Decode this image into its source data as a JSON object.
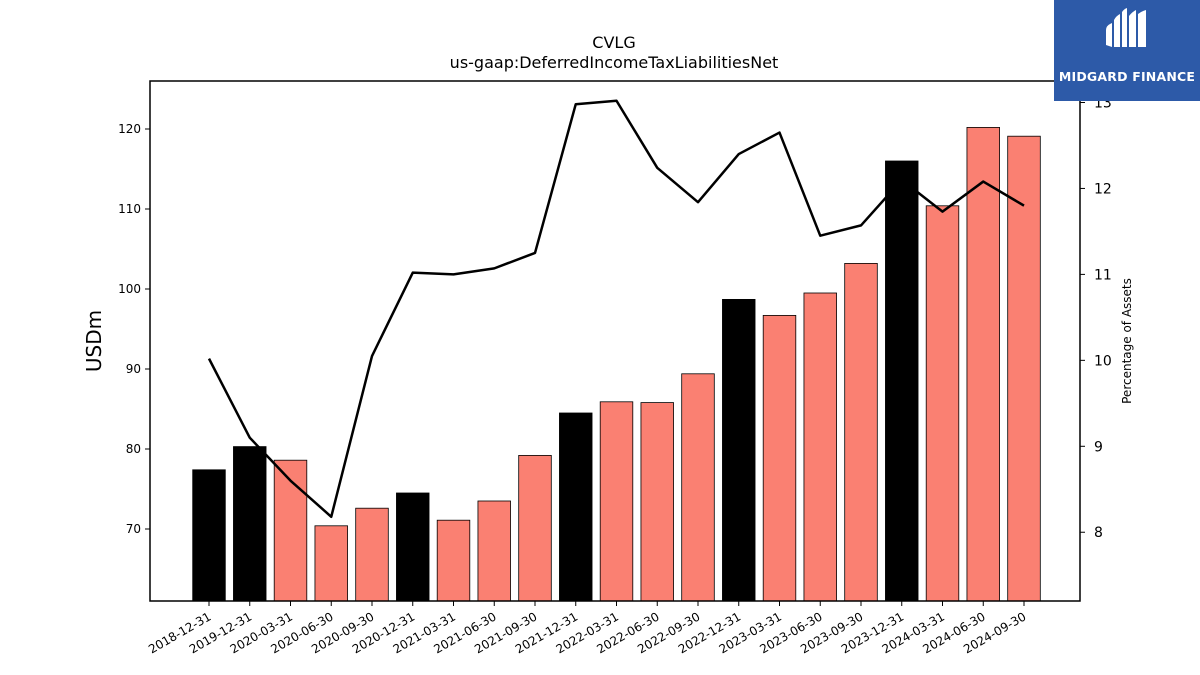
{
  "chart_data": {
    "type": "bar",
    "title": "CVLG",
    "subtitle": "us-gaap:DeferredIncomeTaxLiabilitiesNet",
    "ylabel": "USDm",
    "y2label": "Percentage of Assets",
    "categories": [
      "2018-12-31",
      "2019-12-31",
      "2020-03-31",
      "2020-06-30",
      "2020-09-30",
      "2020-12-31",
      "2021-03-31",
      "2021-06-30",
      "2021-09-30",
      "2021-12-31",
      "2022-03-31",
      "2022-06-30",
      "2022-09-30",
      "2022-12-31",
      "2023-03-31",
      "2023-06-30",
      "2023-09-30",
      "2023-12-31",
      "2024-03-31",
      "2024-06-30",
      "2024-09-30"
    ],
    "series": [
      {
        "type": "bar",
        "axis": "left",
        "values": [
          77.4,
          80.3,
          78.6,
          70.4,
          72.6,
          74.5,
          71.1,
          73.5,
          79.2,
          84.5,
          85.9,
          85.8,
          89.4,
          98.7,
          96.7,
          99.5,
          103.2,
          116.0,
          110.4,
          120.2,
          119.1
        ],
        "colors": [
          "#000000",
          "#000000",
          "#fa8072",
          "#fa8072",
          "#fa8072",
          "#000000",
          "#fa8072",
          "#fa8072",
          "#fa8072",
          "#000000",
          "#fa8072",
          "#fa8072",
          "#fa8072",
          "#000000",
          "#fa8072",
          "#fa8072",
          "#fa8072",
          "#000000",
          "#fa8072",
          "#fa8072",
          "#fa8072"
        ]
      },
      {
        "type": "line",
        "axis": "right",
        "color": "#000000",
        "values": [
          10.02,
          9.1,
          8.6,
          8.18,
          10.05,
          11.02,
          11.0,
          11.07,
          11.25,
          12.98,
          13.02,
          12.24,
          11.84,
          12.4,
          12.65,
          11.45,
          11.57,
          12.1,
          11.73,
          12.08,
          11.8
        ]
      }
    ],
    "ylim": [
      61,
      126
    ],
    "y2lim": [
      7.2,
      13.25
    ],
    "yticks": [
      70,
      80,
      90,
      100,
      110,
      120
    ],
    "y2ticks": [
      8,
      9,
      10,
      11,
      12,
      13
    ]
  },
  "logo": {
    "text": "MIDGARD FINANCE"
  }
}
